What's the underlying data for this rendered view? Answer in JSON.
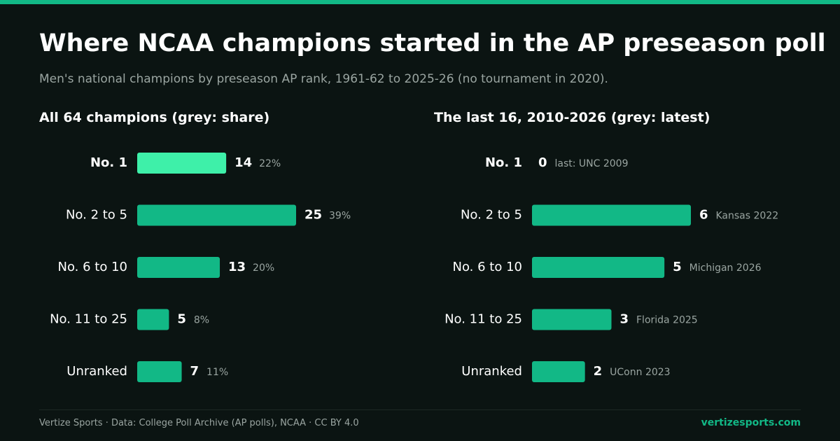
{
  "header": {
    "title": "Where NCAA champions started in the AP preseason poll",
    "subtitle": "Men's national champions by preseason AP rank, 1961-62 to 2025-26 (no tournament in 2020)."
  },
  "colors": {
    "accent": "#12b886",
    "highlight": "#3ef0a9",
    "background": "#0b1412",
    "muted": "#9aa5a1"
  },
  "chart_data": [
    {
      "type": "bar",
      "orientation": "horizontal",
      "title": "All 64 champions (grey: share)",
      "categories": [
        "No. 1",
        "No. 2 to 5",
        "No. 6 to 10",
        "No. 11 to 25",
        "Unranked"
      ],
      "values": [
        14,
        25,
        13,
        5,
        7
      ],
      "annotations": [
        "22%",
        "39%",
        "20%",
        "8%",
        "11%"
      ],
      "highlight_index": 0,
      "xlim": [
        0,
        25
      ]
    },
    {
      "type": "bar",
      "orientation": "horizontal",
      "title": "The last 16, 2010-2026 (grey: latest)",
      "categories": [
        "No. 1",
        "No. 2 to 5",
        "No. 6 to 10",
        "No. 11 to 25",
        "Unranked"
      ],
      "values": [
        0,
        6,
        5,
        3,
        2
      ],
      "annotations": [
        "last: UNC 2009",
        "Kansas 2022",
        "Michigan 2026",
        "Florida 2025",
        "UConn 2023"
      ],
      "highlight_index": 0,
      "xlim": [
        0,
        6
      ]
    }
  ],
  "footer": {
    "credit": "Vertize Sports · Data: College Poll Archive (AP polls), NCAA · CC BY 4.0",
    "site": "vertizesports.com"
  }
}
